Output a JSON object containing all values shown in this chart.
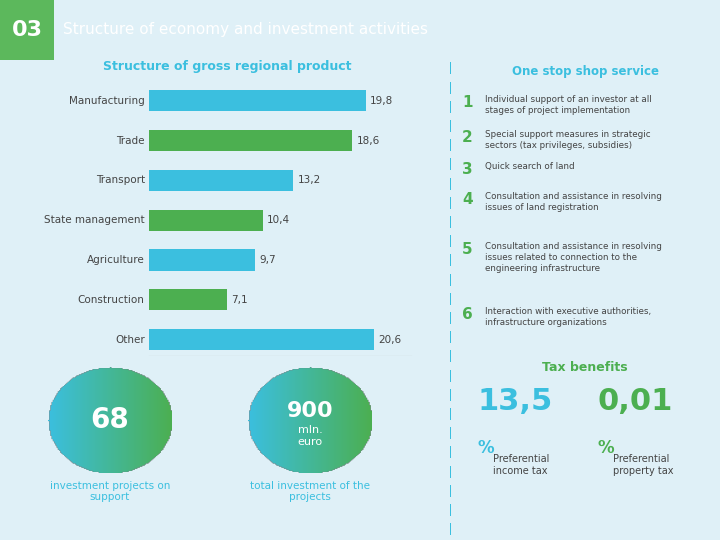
{
  "header_bg": "#3bbfdf",
  "header_green_bg": "#5cb85c",
  "header_number": "03",
  "header_title": "Structure of economy and investment activities",
  "page_bg": "#dff0f7",
  "chart_title": "Structure of gross regional product",
  "chart_categories": [
    "Manufacturing",
    "Trade",
    "Transport",
    "State management",
    "Agriculture",
    "Construction",
    "Other"
  ],
  "chart_values": [
    19.8,
    18.6,
    13.2,
    10.4,
    9.7,
    7.1,
    20.6
  ],
  "chart_colors": [
    "#3bbfdf",
    "#4caf50",
    "#3bbfdf",
    "#4caf50",
    "#3bbfdf",
    "#4caf50",
    "#3bbfdf"
  ],
  "chart_value_labels": [
    "19,8",
    "18,6",
    "13,2",
    "10,4",
    "9,7",
    "7,1",
    "20,6"
  ],
  "circle_gradient_start": "#3bbfdf",
  "circle_gradient_end": "#4caf50",
  "circle1_number": "68",
  "circle1_label": "investment projects on\nsupport",
  "circle2_number": "900",
  "circle2_sublabel": "mln.\neuro",
  "circle2_label": "total investment of the\nprojects",
  "right_title": "One stop shop service",
  "right_items": [
    {
      "num": "1",
      "text": "Individual support of an investor at all\nstages of project implementation"
    },
    {
      "num": "2",
      "text": "Special support measures in strategic\nsectors (tax privileges, subsidies)"
    },
    {
      "num": "3",
      "text": "Quick search of land"
    },
    {
      "num": "4",
      "text": "Consultation and assistance in resolving\nissues of land registration"
    },
    {
      "num": "5",
      "text": "Consultation and assistance in resolving\nissues related to connection to the\nengineering infrastructure"
    },
    {
      "num": "6",
      "text": "Interaction with executive authorities,\ninfrastructure organizations"
    }
  ],
  "tax_title": "Tax benefits",
  "tax1_big": "13,5",
  "tax1_pct": "%",
  "tax1_label": "Preferential\nincome tax",
  "tax2_big": "0,01",
  "tax2_pct": "%",
  "tax2_label": "Preferential\nproperty tax",
  "color_cyan": "#3bbfdf",
  "color_green": "#4caf50",
  "color_text": "#444444",
  "color_separator": "#3bbfdf"
}
